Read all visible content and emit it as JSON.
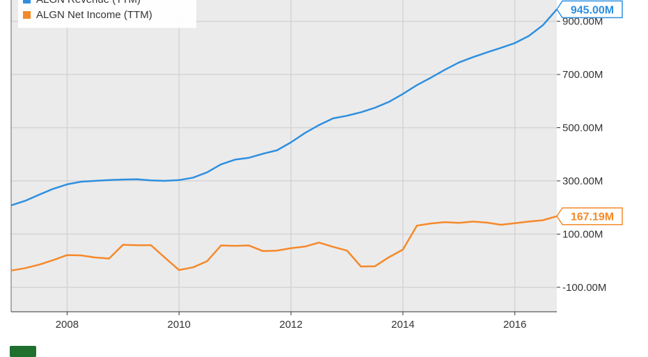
{
  "chart_data": {
    "type": "line",
    "series": [
      {
        "name": "ALGN Revenue (TTM)",
        "color": "#2d8fe0",
        "end_label": "945.00M",
        "points": [
          [
            2007.0,
            208
          ],
          [
            2007.25,
            225
          ],
          [
            2007.5,
            248
          ],
          [
            2007.75,
            270
          ],
          [
            2008.0,
            287
          ],
          [
            2008.25,
            297
          ],
          [
            2008.5,
            300
          ],
          [
            2008.75,
            303
          ],
          [
            2009.0,
            305
          ],
          [
            2009.25,
            306
          ],
          [
            2009.5,
            302
          ],
          [
            2009.75,
            300
          ],
          [
            2010.0,
            303
          ],
          [
            2010.25,
            312
          ],
          [
            2010.5,
            332
          ],
          [
            2010.75,
            362
          ],
          [
            2011.0,
            380
          ],
          [
            2011.25,
            387
          ],
          [
            2011.5,
            402
          ],
          [
            2011.75,
            415
          ],
          [
            2012.0,
            445
          ],
          [
            2012.25,
            480
          ],
          [
            2012.5,
            510
          ],
          [
            2012.75,
            535
          ],
          [
            2013.0,
            545
          ],
          [
            2013.25,
            558
          ],
          [
            2013.5,
            575
          ],
          [
            2013.75,
            597
          ],
          [
            2014.0,
            627
          ],
          [
            2014.25,
            660
          ],
          [
            2014.5,
            688
          ],
          [
            2014.75,
            718
          ],
          [
            2015.0,
            745
          ],
          [
            2015.25,
            765
          ],
          [
            2015.5,
            783
          ],
          [
            2015.75,
            800
          ],
          [
            2016.0,
            818
          ],
          [
            2016.25,
            845
          ],
          [
            2016.5,
            885
          ],
          [
            2016.75,
            945
          ]
        ]
      },
      {
        "name": "ALGN Net Income (TTM)",
        "color": "#f5892a",
        "end_label": "167.19M",
        "points": [
          [
            2007.0,
            -37
          ],
          [
            2007.25,
            -28
          ],
          [
            2007.5,
            -15
          ],
          [
            2007.75,
            2
          ],
          [
            2008.0,
            21
          ],
          [
            2008.25,
            20
          ],
          [
            2008.5,
            12
          ],
          [
            2008.75,
            8
          ],
          [
            2009.0,
            60
          ],
          [
            2009.25,
            58
          ],
          [
            2009.5,
            58
          ],
          [
            2009.75,
            11
          ],
          [
            2010.0,
            -35
          ],
          [
            2010.25,
            -25
          ],
          [
            2010.5,
            -2
          ],
          [
            2010.75,
            57
          ],
          [
            2011.0,
            56
          ],
          [
            2011.25,
            57
          ],
          [
            2011.5,
            36
          ],
          [
            2011.75,
            38
          ],
          [
            2012.0,
            47
          ],
          [
            2012.25,
            53
          ],
          [
            2012.5,
            68
          ],
          [
            2012.75,
            52
          ],
          [
            2013.0,
            38
          ],
          [
            2013.25,
            -22
          ],
          [
            2013.5,
            -21
          ],
          [
            2013.75,
            13
          ],
          [
            2014.0,
            42
          ],
          [
            2014.25,
            132
          ],
          [
            2014.5,
            140
          ],
          [
            2014.75,
            145
          ],
          [
            2015.0,
            142
          ],
          [
            2015.25,
            147
          ],
          [
            2015.5,
            143
          ],
          [
            2015.75,
            135
          ],
          [
            2016.0,
            141
          ],
          [
            2016.25,
            147
          ],
          [
            2016.5,
            152
          ],
          [
            2016.75,
            167.19
          ]
        ]
      }
    ],
    "x_ticks": [
      2008,
      2010,
      2012,
      2014,
      2016
    ],
    "x_tick_labels": [
      "2008",
      "2010",
      "2012",
      "2014",
      "2016"
    ],
    "y_ticks": [
      -100,
      100,
      300,
      500,
      700,
      900
    ],
    "y_tick_labels": [
      "-100.00M",
      "100.00M",
      "300.00M",
      "500.00M",
      "700.00M",
      "900.00M"
    ],
    "xlim": [
      2007.0,
      2016.75
    ],
    "ylim": [
      -192,
      980
    ],
    "legend_position": "top-left",
    "grid": true
  }
}
